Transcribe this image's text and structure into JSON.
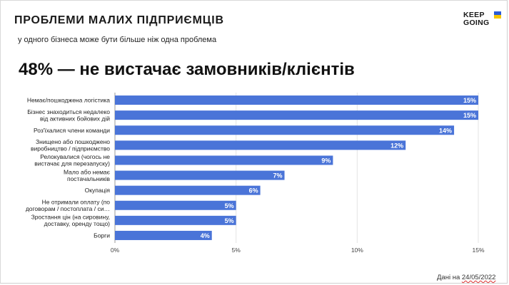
{
  "header": {
    "title": "ПРОБЛЕМИ МАЛИХ ПІДПРИЄМЦІВ",
    "subtitle": "у одного бізнеса може бути більше ніж одна проблема",
    "headline": "48% — не вистачає замовників/клієнтів"
  },
  "logo": {
    "line1": "KEEP",
    "line2": "GOING",
    "colors": [
      "#2a5bd7",
      "#f6c500"
    ]
  },
  "footer": {
    "prefix": "Дані на ",
    "date": "24/05/2022"
  },
  "chart_data": {
    "type": "bar",
    "orientation": "horizontal",
    "categories": [
      [
        "Немає/пошкоджена логістика"
      ],
      [
        "Бізнес знаходиться недалеко",
        "від активних бойових дій"
      ],
      [
        "Роз'їхалися члени команди"
      ],
      [
        "Знищено або пошкоджено",
        "виробництво / підприємство"
      ],
      [
        "Релокувалися (чогось не",
        "вистачає для перезапуску)"
      ],
      [
        "Мало або немає",
        "постачальників"
      ],
      [
        "Окупація"
      ],
      [
        "Не отримали оплату (по",
        "договорам / постоплата / си…"
      ],
      [
        "Зростання цін (на сировину,",
        "доставку, оренду тощо)"
      ],
      [
        "Борги"
      ]
    ],
    "values": [
      15,
      15,
      14,
      12,
      9,
      7,
      6,
      5,
      5,
      4
    ],
    "value_labels": [
      "15%",
      "15%",
      "14%",
      "12%",
      "9%",
      "7%",
      "6%",
      "5%",
      "5%",
      "4%"
    ],
    "xlim": [
      0,
      15
    ],
    "xticks": [
      0,
      5,
      10,
      15
    ],
    "xtick_labels": [
      "0%",
      "5%",
      "10%",
      "15%"
    ],
    "bar_color": "#4a74d8",
    "grid": true
  }
}
